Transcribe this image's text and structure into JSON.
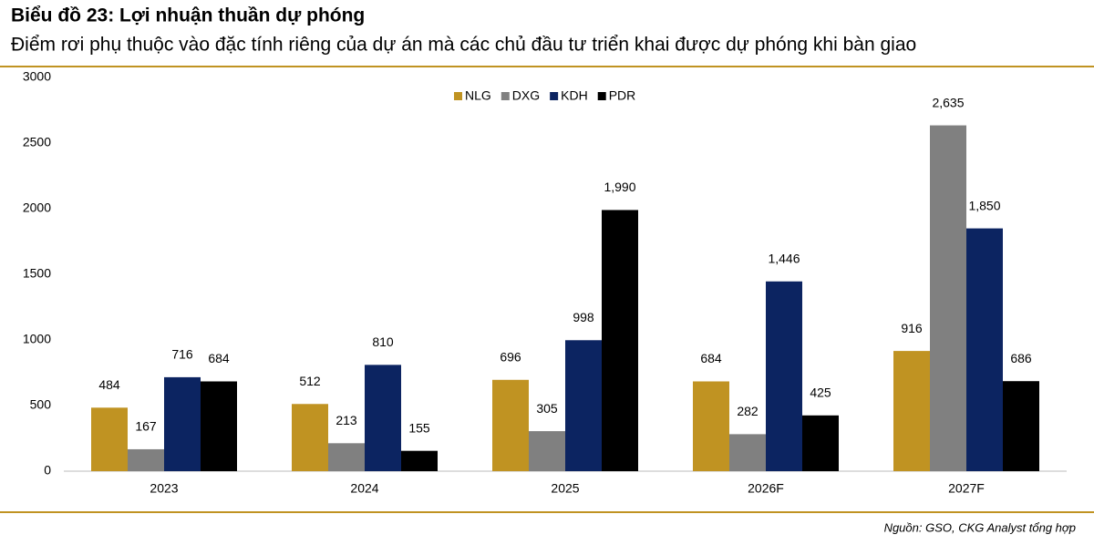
{
  "chart_data": {
    "type": "bar",
    "title": "Biểu đồ 23: Lợi nhuận thuần dự phóng",
    "subtitle": "Điểm rơi phụ thuộc vào đặc tính riêng của dự án mà các chủ đầu tư triển khai được dự phóng khi bàn giao",
    "source": "Nguồn: GSO, CKG Analyst tổng hợp",
    "categories": [
      "2023",
      "2024",
      "2025",
      "2026F",
      "2027F"
    ],
    "series": [
      {
        "name": "NLG",
        "color": "#c09322",
        "values": [
          484,
          512,
          696,
          684,
          916
        ],
        "value_labels": [
          "484",
          "512",
          "696",
          "684",
          "916"
        ]
      },
      {
        "name": "DXG",
        "color": "#808080",
        "values": [
          167,
          213,
          305,
          282,
          2635
        ],
        "value_labels": [
          "167",
          "213",
          "305",
          "282",
          "2,635"
        ]
      },
      {
        "name": "KDH",
        "color": "#0c2461",
        "values": [
          716,
          810,
          998,
          1446,
          1850
        ],
        "value_labels": [
          "716",
          "810",
          "998",
          "1,446",
          "1,850"
        ]
      },
      {
        "name": "PDR",
        "color": "#000000",
        "values": [
          684,
          155,
          1990,
          425,
          686
        ],
        "value_labels": [
          "684",
          "155",
          "1,990",
          "425",
          "686"
        ]
      }
    ],
    "ylim": [
      0,
      3000
    ],
    "yticks": [
      0,
      500,
      1000,
      1500,
      2000,
      2500,
      3000
    ],
    "legend": "top",
    "grid": false
  }
}
